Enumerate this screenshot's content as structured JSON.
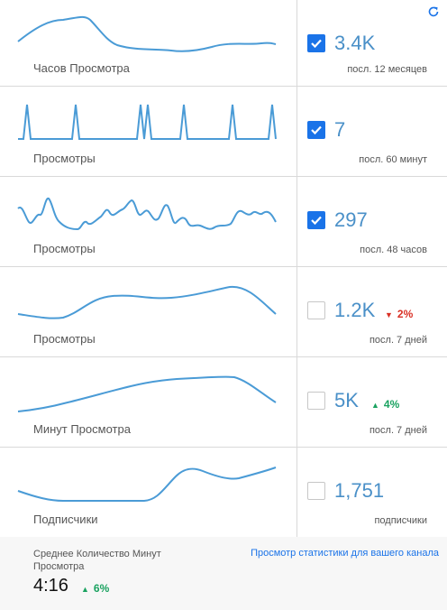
{
  "accent_color": "#1a73e8",
  "value_color": "#4a90c8",
  "spark_color": "#4a9bd6",
  "refresh_icon": "refresh-icon",
  "metrics": [
    {
      "label": "Часов Просмотра",
      "value": "3.4K",
      "period": "посл. 12 месяцев",
      "checked": true,
      "delta": "",
      "delta_dir": ""
    },
    {
      "label": "Просмотры",
      "value": "7",
      "period": "посл. 60 минут",
      "checked": true,
      "delta": "",
      "delta_dir": ""
    },
    {
      "label": "Просмотры",
      "value": "297",
      "period": "посл. 48 часов",
      "checked": true,
      "delta": "",
      "delta_dir": ""
    },
    {
      "label": "Просмотры",
      "value": "1.2K",
      "period": "посл. 7 дней",
      "checked": false,
      "delta": "2%",
      "delta_dir": "down"
    },
    {
      "label": "Минут Просмотра",
      "value": "5K",
      "period": "посл. 7 дней",
      "checked": false,
      "delta": "4%",
      "delta_dir": "up"
    },
    {
      "label": "Подписчики",
      "value": "1,751",
      "period": "подписчики",
      "checked": false,
      "delta": "",
      "delta_dir": ""
    }
  ],
  "footer": {
    "avg_label": "Среднее Количество Минут Просмотра",
    "avg_value": "4:16",
    "avg_delta": "6%",
    "avg_delta_dir": "up",
    "link": "Просмотр статистики для вашего канала"
  }
}
